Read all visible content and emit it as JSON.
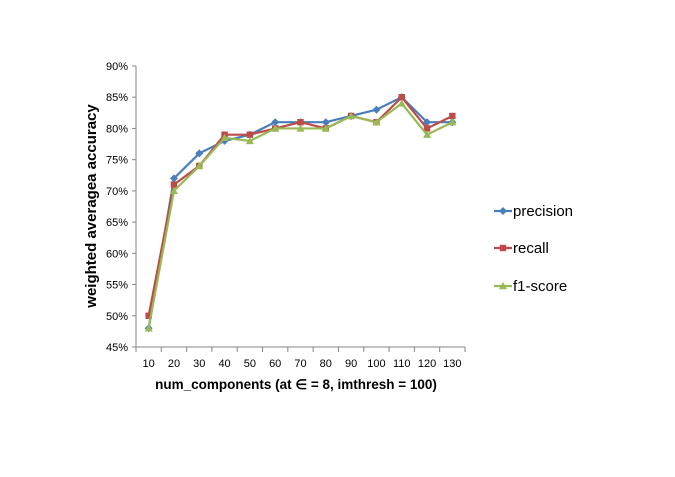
{
  "chart_data": {
    "type": "line",
    "title": "",
    "xlabel": "num_components (at ∈ = 8, imthresh = 100)",
    "ylabel": "weighted averagea accuracy",
    "categories": [
      "10",
      "20",
      "30",
      "40",
      "50",
      "60",
      "70",
      "80",
      "90",
      "100",
      "110",
      "120",
      "130"
    ],
    "ylim": [
      0.45,
      0.9
    ],
    "y_ticks": [
      "45%",
      "50%",
      "55%",
      "60%",
      "65%",
      "70%",
      "75%",
      "80%",
      "85%",
      "90%"
    ],
    "grid": false,
    "legend_position": "right",
    "series": [
      {
        "name": "precision",
        "color": "#4a7ebb",
        "marker": "diamond",
        "values": [
          0.48,
          0.72,
          0.76,
          0.78,
          0.79,
          0.81,
          0.81,
          0.81,
          0.82,
          0.83,
          0.85,
          0.81,
          0.81
        ]
      },
      {
        "name": "recall",
        "color": "#be4b48",
        "marker": "square",
        "values": [
          0.5,
          0.71,
          0.74,
          0.79,
          0.79,
          0.8,
          0.81,
          0.8,
          0.82,
          0.81,
          0.85,
          0.8,
          0.82
        ]
      },
      {
        "name": "f1-score",
        "color": "#98b954",
        "marker": "triangle",
        "values": [
          0.48,
          0.7,
          0.74,
          0.785,
          0.78,
          0.8,
          0.8,
          0.8,
          0.82,
          0.81,
          0.84,
          0.79,
          0.81
        ]
      }
    ]
  }
}
